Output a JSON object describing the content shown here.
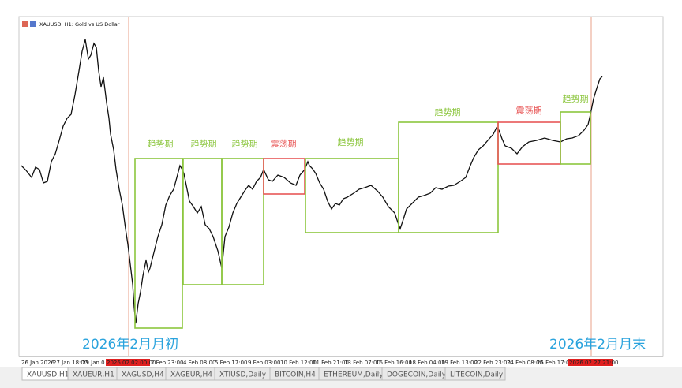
{
  "window": {
    "symbol_label": "XAUUSD, H1:  Gold vs US Dollar"
  },
  "zones": [
    {
      "label": "趋势期",
      "color": "#8cc63e"
    },
    {
      "label": "趋势期",
      "color": "#8cc63e"
    },
    {
      "label": "趋势期",
      "color": "#8cc63e"
    },
    {
      "label": "震荡期",
      "color": "#e85656"
    },
    {
      "label": "趋势期",
      "color": "#8cc63e"
    },
    {
      "label": "趋势期",
      "color": "#8cc63e"
    },
    {
      "label": "震荡期",
      "color": "#e85656"
    },
    {
      "label": "趋势期",
      "color": "#8cc63e"
    }
  ],
  "annotations": [
    "2026年2月月初",
    "2026年2月月末"
  ],
  "time_axis": [
    "26 Jan 2026",
    "27 Jan 18:00",
    "29 Jan 0",
    "2026.02.02 00:00",
    "2 Feb 23:00",
    "4 Feb 08:00",
    "5 Feb 17:00",
    "9 Feb 03:00",
    "10 Feb 12:00",
    "11 Feb 21:00",
    "13 Feb 07:00",
    "16 Feb 16:00",
    "18 Feb 04:00",
    "19 Feb 13:00",
    "22 Feb 23:00",
    "24 Feb 08:00",
    "25 Feb 17:0",
    "2026.02.27 21:00"
  ],
  "tabs": [
    "XAUUSD,H1",
    "XAUEUR,H1",
    "XAGUSD,H4",
    "XAGEUR,H4",
    "XTIUSD,Daily",
    "BITCOIN,H4",
    "ETHEREUM,Daily",
    "DOGECOIN,Daily",
    "LITECOIN,Daily"
  ]
}
